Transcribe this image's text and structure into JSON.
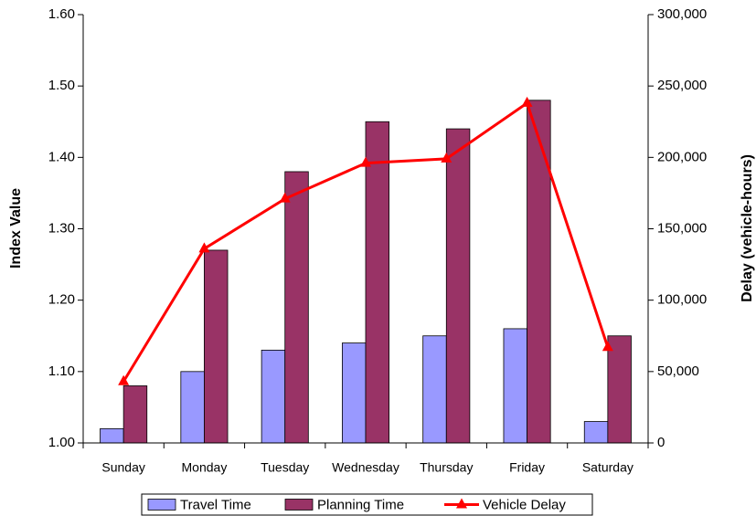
{
  "chart_data": {
    "type": "bar_line",
    "y_title": "Index Value",
    "y2_title": "Delay (vehicle-hours)",
    "categories": [
      "Sunday",
      "Monday",
      "Tuesday",
      "Wednesday",
      "Thursday",
      "Friday",
      "Saturday"
    ],
    "series": [
      {
        "name": "Travel Time",
        "type": "bar",
        "color": "#9999ff",
        "values": [
          1.02,
          1.1,
          1.13,
          1.14,
          1.15,
          1.16,
          1.03
        ]
      },
      {
        "name": "Planning Time",
        "type": "bar",
        "color": "#993366",
        "values": [
          1.08,
          1.27,
          1.38,
          1.45,
          1.44,
          1.48,
          1.15
        ]
      },
      {
        "name": "Vehicle Delay",
        "type": "line",
        "axis": "y2",
        "color": "#ff0000",
        "values": [
          43000,
          136000,
          171000,
          196000,
          199000,
          238000,
          67000
        ]
      }
    ],
    "ylim": [
      1.0,
      1.6
    ],
    "yticks": [
      {
        "value": 1.0,
        "label": "1.00"
      },
      {
        "value": 1.1,
        "label": "1.10"
      },
      {
        "value": 1.2,
        "label": "1.20"
      },
      {
        "value": 1.3,
        "label": "1.30"
      },
      {
        "value": 1.4,
        "label": "1.40"
      },
      {
        "value": 1.5,
        "label": "1.50"
      },
      {
        "value": 1.6,
        "label": "1.60"
      }
    ],
    "y2lim": [
      0,
      300000
    ],
    "y2ticks": [
      0,
      {
        "value": 50000,
        "label": "50,000"
      },
      {
        "value": 100000,
        "label": "100,000"
      },
      {
        "value": 150000,
        "label": "150,000"
      },
      {
        "value": 200000,
        "label": "200,000"
      },
      {
        "value": 250000,
        "label": "250,000"
      },
      {
        "value": 300000,
        "label": "300,000"
      }
    ],
    "legend": "bottom"
  }
}
